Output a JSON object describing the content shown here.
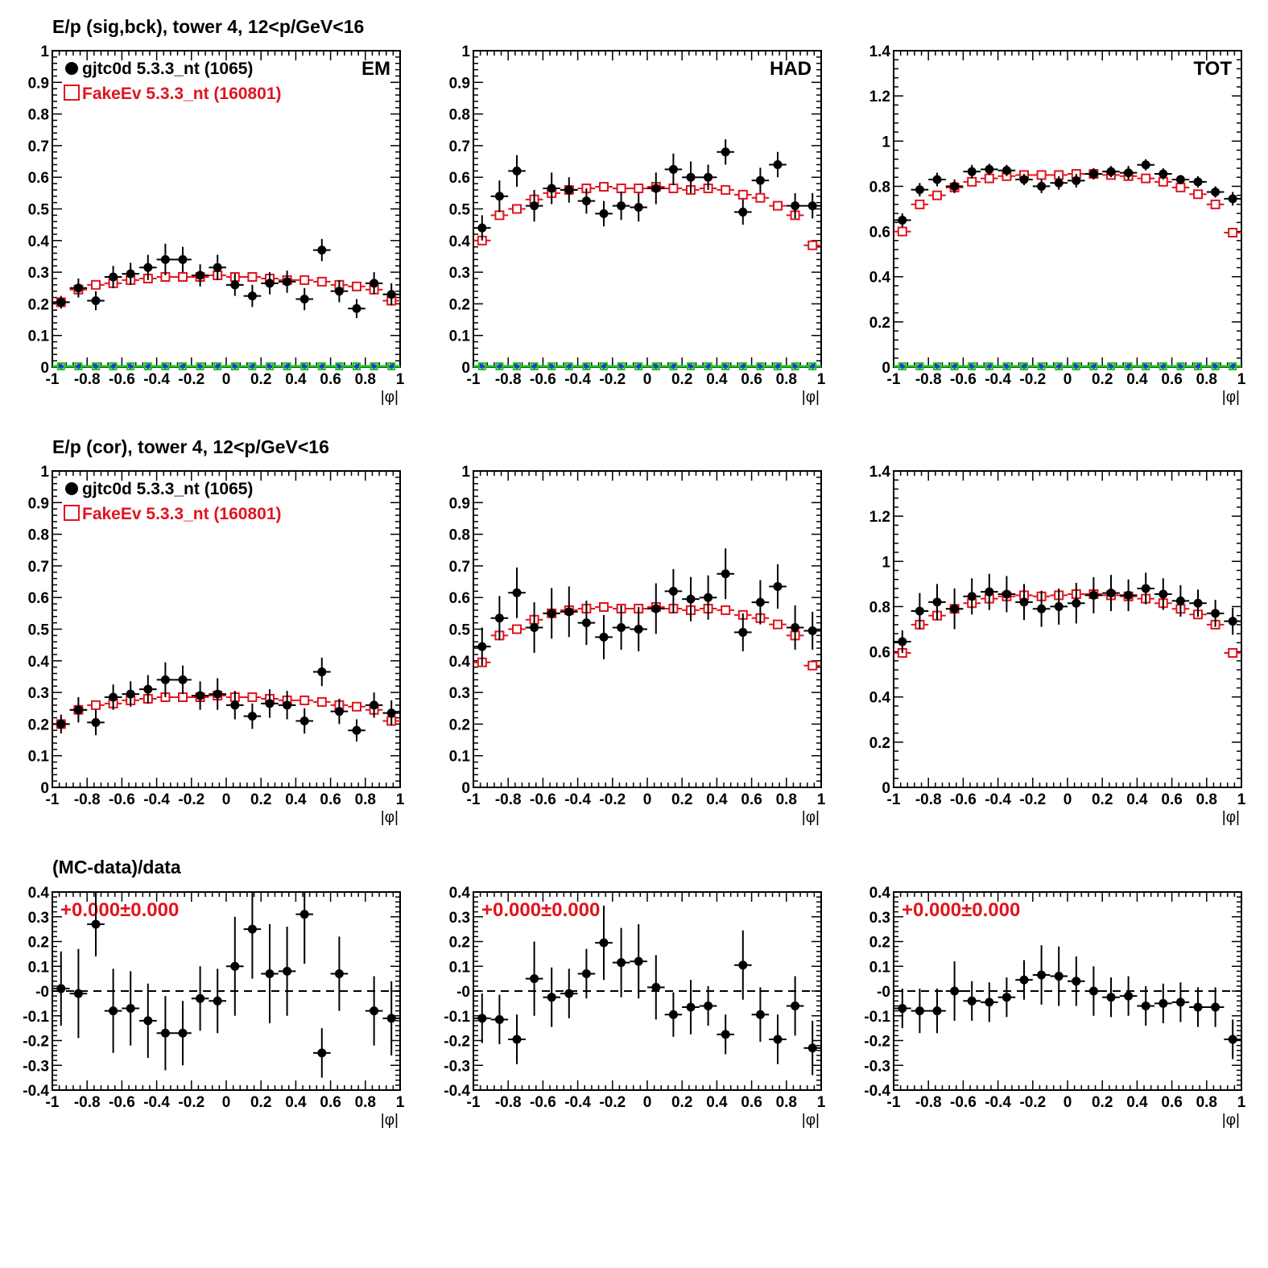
{
  "row_titles": {
    "row1": "E/p (sig,bck), tower 4, 12<p/GeV<16",
    "row2": "E/p (cor), tower 4, 12<p/GeV<16",
    "row3": "(MC-data)/data"
  },
  "xlabel": "|φ|",
  "x_ticks": [
    "-1",
    "-0.8",
    "-0.6",
    "-0.4",
    "-0.2",
    "0",
    "0.2",
    "0.4",
    "0.6",
    "0.8",
    "1"
  ],
  "colors": {
    "data": "#000000",
    "mc": "#e0141e",
    "zero_blue": "#1f3fd0",
    "zero_green": "#22c12a"
  },
  "legend": {
    "data": "gjtc0d 5.3.3_nt (1065)",
    "mc": "FakeEv 5.3.3_nt (160801)"
  },
  "chart_data": [
    {
      "id": "em_sigbck",
      "type": "scatter",
      "label": "EM",
      "ylim": [
        0,
        1
      ],
      "y_ticks": [
        "0",
        "0.1",
        "0.2",
        "0.3",
        "0.4",
        "0.5",
        "0.6",
        "0.7",
        "0.8",
        "0.9",
        "1"
      ],
      "x": [
        -0.95,
        -0.85,
        -0.75,
        -0.65,
        -0.55,
        -0.45,
        -0.35,
        -0.25,
        -0.15,
        -0.05,
        0.05,
        0.15,
        0.25,
        0.35,
        0.45,
        0.55,
        0.65,
        0.75,
        0.85,
        0.95
      ],
      "series": [
        {
          "name": "gjtc0d 5.3.3_nt (1065)",
          "values": [
            0.205,
            0.25,
            0.21,
            0.285,
            0.295,
            0.315,
            0.34,
            0.34,
            0.29,
            0.315,
            0.26,
            0.225,
            0.265,
            0.27,
            0.215,
            0.37,
            0.24,
            0.185,
            0.265,
            0.23
          ],
          "err": [
            0.02,
            0.03,
            0.03,
            0.035,
            0.035,
            0.04,
            0.05,
            0.04,
            0.035,
            0.04,
            0.035,
            0.035,
            0.035,
            0.035,
            0.035,
            0.035,
            0.035,
            0.03,
            0.035,
            0.035
          ]
        },
        {
          "name": "FakeEv 5.3.3_nt (160801)",
          "values": [
            0.205,
            0.245,
            0.26,
            0.265,
            0.275,
            0.28,
            0.285,
            0.285,
            0.285,
            0.29,
            0.285,
            0.285,
            0.28,
            0.275,
            0.275,
            0.27,
            0.26,
            0.255,
            0.245,
            0.21
          ]
        }
      ],
      "zero_band": true
    },
    {
      "id": "had_sigbck",
      "type": "scatter",
      "label": "HAD",
      "ylim": [
        0,
        1
      ],
      "y_ticks": [
        "0",
        "0.1",
        "0.2",
        "0.3",
        "0.4",
        "0.5",
        "0.6",
        "0.7",
        "0.8",
        "0.9",
        "1"
      ],
      "x": [
        -0.95,
        -0.85,
        -0.75,
        -0.65,
        -0.55,
        -0.45,
        -0.35,
        -0.25,
        -0.15,
        -0.05,
        0.05,
        0.15,
        0.25,
        0.35,
        0.45,
        0.55,
        0.65,
        0.75,
        0.85,
        0.95
      ],
      "series": [
        {
          "name": "gjtc0d 5.3.3_nt (1065)",
          "values": [
            0.44,
            0.54,
            0.62,
            0.51,
            0.565,
            0.56,
            0.525,
            0.485,
            0.51,
            0.505,
            0.565,
            0.625,
            0.6,
            0.6,
            0.68,
            0.49,
            0.59,
            0.64,
            0.51,
            0.51
          ],
          "err": [
            0.04,
            0.05,
            0.05,
            0.05,
            0.05,
            0.04,
            0.04,
            0.04,
            0.045,
            0.045,
            0.05,
            0.05,
            0.05,
            0.04,
            0.04,
            0.04,
            0.04,
            0.04,
            0.04,
            0.04
          ]
        },
        {
          "name": "FakeEv 5.3.3_nt (160801)",
          "values": [
            0.4,
            0.48,
            0.5,
            0.53,
            0.55,
            0.56,
            0.565,
            0.57,
            0.565,
            0.565,
            0.57,
            0.565,
            0.56,
            0.565,
            0.56,
            0.545,
            0.535,
            0.51,
            0.48,
            0.385
          ]
        }
      ],
      "zero_band": true
    },
    {
      "id": "tot_sigbck",
      "type": "scatter",
      "label": "TOT",
      "ylim": [
        0,
        1.4
      ],
      "y_ticks": [
        "0",
        "0.2",
        "0.4",
        "0.6",
        "0.8",
        "1",
        "1.2",
        "1.4"
      ],
      "x": [
        -0.95,
        -0.85,
        -0.75,
        -0.65,
        -0.55,
        -0.45,
        -0.35,
        -0.25,
        -0.15,
        -0.05,
        0.05,
        0.15,
        0.25,
        0.35,
        0.45,
        0.55,
        0.65,
        0.75,
        0.85,
        0.95
      ],
      "series": [
        {
          "name": "gjtc0d 5.3.3_nt (1065)",
          "values": [
            0.65,
            0.785,
            0.83,
            0.8,
            0.865,
            0.875,
            0.87,
            0.83,
            0.8,
            0.815,
            0.825,
            0.855,
            0.865,
            0.86,
            0.895,
            0.855,
            0.83,
            0.82,
            0.775,
            0.745
          ],
          "err": [
            0.03,
            0.03,
            0.03,
            0.03,
            0.03,
            0.025,
            0.025,
            0.025,
            0.03,
            0.03,
            0.03,
            0.025,
            0.025,
            0.03,
            0.025,
            0.025,
            0.02,
            0.025,
            0.025,
            0.03
          ]
        },
        {
          "name": "FakeEv 5.3.3_nt (160801)",
          "values": [
            0.6,
            0.72,
            0.76,
            0.795,
            0.82,
            0.835,
            0.845,
            0.85,
            0.85,
            0.85,
            0.855,
            0.855,
            0.85,
            0.845,
            0.835,
            0.82,
            0.795,
            0.765,
            0.72,
            0.595
          ]
        }
      ],
      "zero_band": true
    },
    {
      "id": "em_cor",
      "type": "scatter",
      "ylim": [
        0,
        1
      ],
      "y_ticks": [
        "0",
        "0.1",
        "0.2",
        "0.3",
        "0.4",
        "0.5",
        "0.6",
        "0.7",
        "0.8",
        "0.9",
        "1"
      ],
      "x": [
        -0.95,
        -0.85,
        -0.75,
        -0.65,
        -0.55,
        -0.45,
        -0.35,
        -0.25,
        -0.15,
        -0.05,
        0.05,
        0.15,
        0.25,
        0.35,
        0.45,
        0.55,
        0.65,
        0.75,
        0.85,
        0.95
      ],
      "series": [
        {
          "name": "gjtc0d 5.3.3_nt (1065)",
          "values": [
            0.2,
            0.245,
            0.205,
            0.285,
            0.295,
            0.31,
            0.34,
            0.34,
            0.29,
            0.295,
            0.26,
            0.225,
            0.265,
            0.26,
            0.21,
            0.365,
            0.24,
            0.18,
            0.26,
            0.235
          ],
          "err": [
            0.03,
            0.04,
            0.04,
            0.04,
            0.04,
            0.045,
            0.055,
            0.045,
            0.045,
            0.05,
            0.045,
            0.04,
            0.045,
            0.045,
            0.04,
            0.045,
            0.04,
            0.035,
            0.04,
            0.04
          ]
        },
        {
          "name": "FakeEv 5.3.3_nt (160801)",
          "values": [
            0.2,
            0.245,
            0.26,
            0.265,
            0.275,
            0.28,
            0.285,
            0.285,
            0.285,
            0.29,
            0.285,
            0.285,
            0.28,
            0.275,
            0.275,
            0.27,
            0.26,
            0.255,
            0.245,
            0.21
          ]
        }
      ],
      "zero_band": false
    },
    {
      "id": "had_cor",
      "type": "scatter",
      "ylim": [
        0,
        1
      ],
      "y_ticks": [
        "0",
        "0.1",
        "0.2",
        "0.3",
        "0.4",
        "0.5",
        "0.6",
        "0.7",
        "0.8",
        "0.9",
        "1"
      ],
      "x": [
        -0.95,
        -0.85,
        -0.75,
        -0.65,
        -0.55,
        -0.45,
        -0.35,
        -0.25,
        -0.15,
        -0.05,
        0.05,
        0.15,
        0.25,
        0.35,
        0.45,
        0.55,
        0.65,
        0.75,
        0.85,
        0.95
      ],
      "series": [
        {
          "name": "gjtc0d 5.3.3_nt (1065)",
          "values": [
            0.445,
            0.535,
            0.615,
            0.505,
            0.55,
            0.555,
            0.52,
            0.475,
            0.505,
            0.5,
            0.565,
            0.62,
            0.595,
            0.6,
            0.675,
            0.49,
            0.585,
            0.635,
            0.505,
            0.495
          ],
          "err": [
            0.06,
            0.07,
            0.08,
            0.08,
            0.08,
            0.08,
            0.07,
            0.07,
            0.07,
            0.07,
            0.08,
            0.07,
            0.07,
            0.07,
            0.08,
            0.06,
            0.07,
            0.07,
            0.07,
            0.06
          ]
        },
        {
          "name": "FakeEv 5.3.3_nt (160801)",
          "values": [
            0.395,
            0.48,
            0.5,
            0.53,
            0.55,
            0.56,
            0.565,
            0.57,
            0.565,
            0.565,
            0.57,
            0.565,
            0.56,
            0.565,
            0.56,
            0.545,
            0.535,
            0.515,
            0.48,
            0.385
          ]
        }
      ],
      "zero_band": false
    },
    {
      "id": "tot_cor",
      "type": "scatter",
      "ylim": [
        0,
        1.4
      ],
      "y_ticks": [
        "0",
        "0.2",
        "0.4",
        "0.6",
        "0.8",
        "1",
        "1.2",
        "1.4"
      ],
      "x": [
        -0.95,
        -0.85,
        -0.75,
        -0.65,
        -0.55,
        -0.45,
        -0.35,
        -0.25,
        -0.15,
        -0.05,
        0.05,
        0.15,
        0.25,
        0.35,
        0.45,
        0.55,
        0.65,
        0.75,
        0.85,
        0.95
      ],
      "series": [
        {
          "name": "gjtc0d 5.3.3_nt (1065)",
          "values": [
            0.645,
            0.78,
            0.82,
            0.79,
            0.845,
            0.865,
            0.855,
            0.82,
            0.79,
            0.8,
            0.815,
            0.85,
            0.86,
            0.85,
            0.88,
            0.855,
            0.825,
            0.815,
            0.77,
            0.735
          ],
          "err": [
            0.05,
            0.08,
            0.08,
            0.09,
            0.08,
            0.08,
            0.08,
            0.08,
            0.08,
            0.08,
            0.09,
            0.08,
            0.08,
            0.07,
            0.07,
            0.07,
            0.07,
            0.06,
            0.06,
            0.06
          ]
        },
        {
          "name": "FakeEv 5.3.3_nt (160801)",
          "values": [
            0.595,
            0.72,
            0.76,
            0.79,
            0.815,
            0.835,
            0.845,
            0.85,
            0.845,
            0.85,
            0.855,
            0.855,
            0.85,
            0.845,
            0.835,
            0.815,
            0.79,
            0.765,
            0.72,
            0.595
          ]
        }
      ],
      "zero_band": false
    },
    {
      "id": "em_ratio",
      "type": "scatter",
      "ylim": [
        -0.4,
        0.4
      ],
      "y_ticks": [
        "-0.4",
        "-0.3",
        "-0.2",
        "-0.1",
        "-0",
        "0.1",
        "0.2",
        "0.3",
        "0.4"
      ],
      "annotation": "+0.000±0.000",
      "x": [
        -0.95,
        -0.85,
        -0.75,
        -0.65,
        -0.55,
        -0.45,
        -0.35,
        -0.25,
        -0.15,
        -0.05,
        0.05,
        0.15,
        0.25,
        0.35,
        0.45,
        0.55,
        0.65,
        0.75,
        0.85,
        0.95
      ],
      "series": [
        {
          "name": "",
          "values": [
            0.01,
            -0.01,
            0.27,
            -0.08,
            -0.07,
            -0.12,
            -0.17,
            -0.17,
            -0.03,
            -0.04,
            0.1,
            0.25,
            0.07,
            0.08,
            0.31,
            -0.25,
            0.07,
            null,
            -0.08,
            -0.11
          ],
          "err": [
            0.15,
            0.18,
            0.13,
            0.17,
            0.15,
            0.15,
            0.15,
            0.13,
            0.13,
            0.13,
            0.2,
            0.2,
            0.2,
            0.18,
            0.2,
            0.1,
            0.15,
            null,
            0.14,
            0.15
          ]
        }
      ],
      "reference_line": 0
    },
    {
      "id": "had_ratio",
      "type": "scatter",
      "ylim": [
        -0.4,
        0.4
      ],
      "y_ticks": [
        "-0.4",
        "-0.3",
        "-0.2",
        "-0.1",
        "-0",
        "0.1",
        "0.2",
        "0.3",
        "0.4"
      ],
      "annotation": "+0.000±0.000",
      "x": [
        -0.95,
        -0.85,
        -0.75,
        -0.65,
        -0.55,
        -0.45,
        -0.35,
        -0.25,
        -0.15,
        -0.05,
        0.05,
        0.15,
        0.25,
        0.35,
        0.45,
        0.55,
        0.65,
        0.75,
        0.85,
        0.95
      ],
      "series": [
        {
          "name": "",
          "values": [
            -0.11,
            -0.115,
            -0.195,
            0.05,
            -0.025,
            -0.01,
            0.07,
            0.195,
            0.115,
            0.12,
            0.015,
            -0.095,
            -0.065,
            -0.06,
            -0.175,
            0.105,
            -0.095,
            -0.195,
            -0.06,
            -0.23
          ],
          "err": [
            0.1,
            0.1,
            0.1,
            0.15,
            0.12,
            0.1,
            0.1,
            0.15,
            0.14,
            0.15,
            0.13,
            0.09,
            0.11,
            0.08,
            0.08,
            0.14,
            0.11,
            0.1,
            0.12,
            0.11
          ]
        }
      ],
      "reference_line": 0
    },
    {
      "id": "tot_ratio",
      "type": "scatter",
      "ylim": [
        -0.4,
        0.4
      ],
      "y_ticks": [
        "-0.4",
        "-0.3",
        "-0.2",
        "-0.1",
        "-0",
        "0.1",
        "0.2",
        "0.3",
        "0.4"
      ],
      "annotation": "+0.000±0.000",
      "x": [
        -0.95,
        -0.85,
        -0.75,
        -0.65,
        -0.55,
        -0.45,
        -0.35,
        -0.25,
        -0.15,
        -0.05,
        0.05,
        0.15,
        0.25,
        0.35,
        0.45,
        0.55,
        0.65,
        0.75,
        0.85,
        0.95
      ],
      "series": [
        {
          "name": "",
          "values": [
            -0.07,
            -0.08,
            -0.08,
            0.0,
            -0.04,
            -0.045,
            -0.025,
            0.045,
            0.065,
            0.06,
            0.04,
            0.0,
            -0.025,
            -0.02,
            -0.06,
            -0.05,
            -0.045,
            -0.065,
            -0.065,
            -0.195
          ],
          "err": [
            0.08,
            0.09,
            0.09,
            0.12,
            0.08,
            0.08,
            0.08,
            0.08,
            0.12,
            0.12,
            0.1,
            0.1,
            0.08,
            0.08,
            0.08,
            0.08,
            0.08,
            0.08,
            0.08,
            0.08
          ]
        }
      ],
      "reference_line": 0
    }
  ]
}
